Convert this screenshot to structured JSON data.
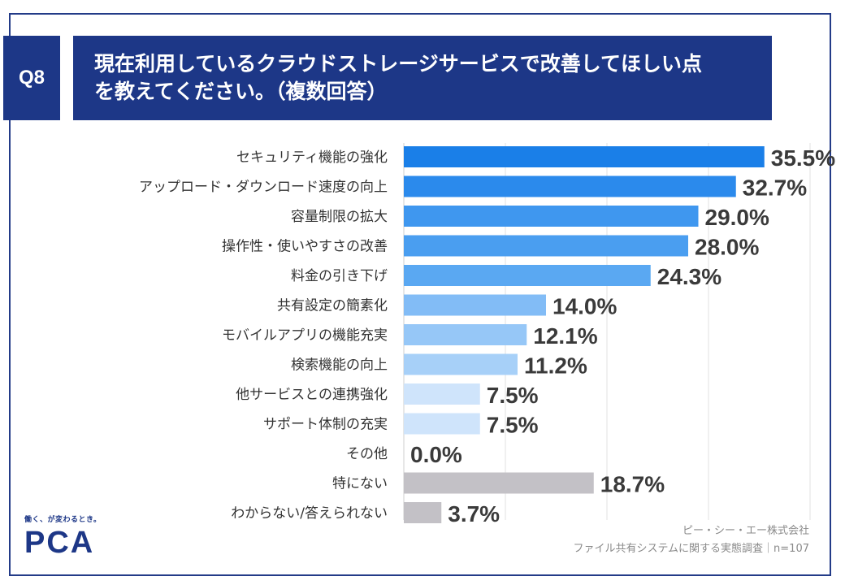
{
  "header": {
    "badge": "Q8",
    "title_line1": "現在利用しているクラウドストレージサービスで改善してほしい点",
    "title_line2": "を教えてください。（複数回答）"
  },
  "chart_data": {
    "type": "bar",
    "orientation": "horizontal",
    "title": "",
    "xlabel": "",
    "ylabel": "",
    "xlim": [
      0,
      40
    ],
    "grid": true,
    "categories": [
      "セキュリティ機能の強化",
      "アップロード・ダウンロード速度の向上",
      "容量制限の拡大",
      "操作性・使いやすさの改善",
      "料金の引き下げ",
      "共有設定の簡素化",
      "モバイルアプリの機能充実",
      "検索機能の向上",
      "他サービスとの連携強化",
      "サポート体制の充実",
      "その他",
      "特にない",
      "わからない/答えられない"
    ],
    "values": [
      35.5,
      32.7,
      29.0,
      28.0,
      24.3,
      14.0,
      12.1,
      11.2,
      7.5,
      7.5,
      0.0,
      18.7,
      3.7
    ],
    "value_labels": [
      "35.5%",
      "32.7%",
      "29.0%",
      "28.0%",
      "24.3%",
      "14.0%",
      "12.1%",
      "11.2%",
      "7.5%",
      "7.5%",
      "0.0%",
      "18.7%",
      "3.7%"
    ],
    "colors": [
      "#1a7fe8",
      "#2b8aec",
      "#3f97ef",
      "#4a9ef0",
      "#5aa8f2",
      "#82bcf6",
      "#96c7f7",
      "#a7d0f8",
      "#cfe4fb",
      "#cfe4fb",
      "#e3effc",
      "#c3c1c6",
      "#c3c1c6"
    ]
  },
  "logo": {
    "tagline": "働く、が変わるとき。",
    "mark": "PCA"
  },
  "source": {
    "company": "ピー・シー・エー株式会社",
    "survey": "ファイル共有システムに関する実態調査｜n=107"
  }
}
